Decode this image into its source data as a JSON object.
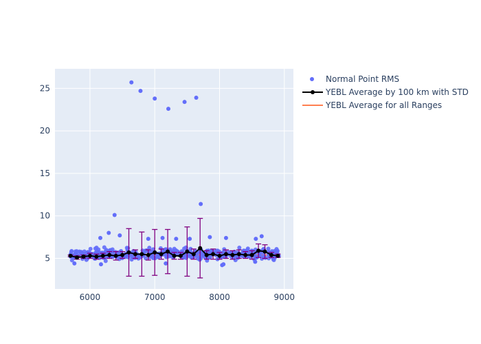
{
  "chart_data": {
    "type": "scatter",
    "xlim": [
      5460,
      9140
    ],
    "ylim": [
      1.4,
      27.3
    ],
    "x_ticks": [
      6000,
      7000,
      8000,
      9000
    ],
    "y_ticks": [
      5,
      10,
      15,
      20,
      25
    ],
    "grid": true,
    "legend_position": "top-right",
    "colors": {
      "plot_bg": "#e5ecf6",
      "grid": "#ffffff",
      "scatter": "#636efa",
      "average_line": "#000000",
      "error_bars": "#800080",
      "overall_line": "#ff7f50"
    },
    "legend": [
      {
        "label": "Normal Point RMS",
        "symbol": "dot"
      },
      {
        "label": "YEBL Average by 100 km with STD",
        "symbol": "line-marker"
      },
      {
        "label": "YEBL Average for all Ranges",
        "symbol": "line"
      }
    ],
    "scatter_outliers": [
      {
        "x": 6640,
        "y": 25.7
      },
      {
        "x": 6780,
        "y": 24.7
      },
      {
        "x": 7000,
        "y": 23.8
      },
      {
        "x": 7210,
        "y": 22.6
      },
      {
        "x": 7460,
        "y": 23.4
      },
      {
        "x": 7640,
        "y": 23.9
      },
      {
        "x": 7710,
        "y": 11.4
      },
      {
        "x": 6380,
        "y": 10.1
      },
      {
        "x": 6290,
        "y": 8.0
      },
      {
        "x": 6160,
        "y": 7.4
      },
      {
        "x": 6460,
        "y": 7.7
      },
      {
        "x": 6900,
        "y": 7.3
      },
      {
        "x": 7120,
        "y": 7.4
      },
      {
        "x": 7330,
        "y": 7.3
      },
      {
        "x": 7540,
        "y": 7.3
      },
      {
        "x": 7850,
        "y": 7.5
      },
      {
        "x": 8100,
        "y": 7.4
      },
      {
        "x": 8560,
        "y": 7.3
      },
      {
        "x": 8650,
        "y": 7.6
      },
      {
        "x": 5760,
        "y": 4.4
      },
      {
        "x": 6170,
        "y": 4.3
      },
      {
        "x": 8040,
        "y": 4.2
      },
      {
        "x": 8060,
        "y": 4.3
      },
      {
        "x": 8550,
        "y": 4.6
      },
      {
        "x": 7170,
        "y": 4.4
      }
    ],
    "scatter_dense_band": {
      "x_range": [
        5700,
        8920
      ],
      "y_range": [
        4.6,
        6.5
      ],
      "count": 420,
      "center_y": 5.3
    },
    "average_series": {
      "name": "YEBL Average by 100 km with STD",
      "x": [
        5700,
        5800,
        5900,
        6000,
        6100,
        6200,
        6300,
        6400,
        6500,
        6600,
        6700,
        6800,
        6900,
        7000,
        7100,
        7200,
        7300,
        7400,
        7500,
        7600,
        7700,
        7800,
        7900,
        8000,
        8100,
        8200,
        8300,
        8400,
        8500,
        8600,
        8700,
        8800,
        8900
      ],
      "y": [
        5.3,
        5.1,
        5.2,
        5.3,
        5.2,
        5.3,
        5.4,
        5.3,
        5.4,
        5.7,
        5.5,
        5.5,
        5.4,
        5.7,
        5.5,
        5.8,
        5.3,
        5.3,
        5.8,
        5.5,
        6.2,
        5.4,
        5.5,
        5.3,
        5.5,
        5.4,
        5.5,
        5.4,
        5.4,
        5.9,
        5.8,
        5.4,
        5.3
      ],
      "std": [
        0.1,
        0.2,
        0.2,
        0.3,
        0.3,
        0.3,
        0.4,
        0.5,
        0.4,
        2.8,
        0.5,
        2.6,
        0.6,
        2.7,
        0.6,
        2.6,
        0.4,
        0.4,
        2.9,
        0.6,
        3.5,
        0.5,
        0.6,
        0.4,
        0.5,
        0.5,
        0.5,
        0.4,
        0.5,
        0.8,
        0.8,
        0.3,
        0.2
      ]
    },
    "overall_average": {
      "name": "YEBL Average for all Ranges",
      "y": 5.4,
      "x_range": [
        5700,
        8900
      ]
    }
  }
}
